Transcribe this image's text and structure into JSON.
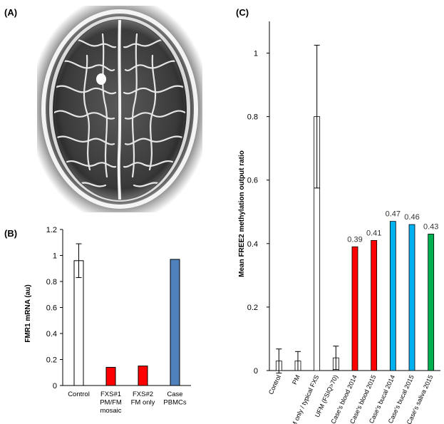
{
  "panels": {
    "a_label": "(A)",
    "b_label": "(B)",
    "c_label": "(C)"
  },
  "colors": {
    "white_bar": "#ffffff",
    "red_bar": "#ff0000",
    "blue_bar_b": "#4f81bd",
    "blue_bar_c": "#00b0f0",
    "green_bar": "#00b050"
  },
  "chart_data": [
    {
      "type": "bar",
      "panel": "B",
      "ylabel": "FMR1 mRNA (au)",
      "ylim": [
        0,
        1.2
      ],
      "yticks": [
        0,
        0.2,
        0.4,
        0.6,
        0.8,
        1,
        1.2
      ],
      "ytick_labels": [
        "0",
        "0.2",
        "0.4",
        "0.6",
        "0.8",
        "1",
        "1.2"
      ],
      "categories": [
        [
          "Control"
        ],
        [
          "FXS#1",
          "PM/FM",
          "mosaic"
        ],
        [
          "FXS#2",
          "FM only"
        ],
        [
          "Case",
          "PBMCs"
        ]
      ],
      "values": [
        0.96,
        0.14,
        0.15,
        0.97
      ],
      "errors": [
        0.13,
        null,
        null,
        null
      ],
      "bar_colors": [
        "#ffffff",
        "#ff0000",
        "#ff0000",
        "#4f81bd"
      ]
    },
    {
      "type": "bar",
      "panel": "C",
      "ylabel": "Mean FREE2 methylation output ratio",
      "ylim": [
        0,
        1.1
      ],
      "yticks": [
        0,
        0.2,
        0.4,
        0.6,
        0.8,
        1
      ],
      "ytick_labels": [
        "0",
        "0.2",
        "0.4",
        "0.6",
        "0.8",
        "1"
      ],
      "categories": [
        "Control",
        "PM",
        "FM only / typical FXS",
        "UFM (FSIQ>70)",
        "Case's blood 2014",
        "Case's blood 2015",
        "Case's bucal 2014",
        "Case's bucal 2015",
        "Case's saliva 2015"
      ],
      "values": [
        0.03,
        0.03,
        0.8,
        0.04,
        0.39,
        0.41,
        0.47,
        0.46,
        0.43
      ],
      "errors": [
        0.038,
        0.03,
        0.225,
        0.037,
        null,
        null,
        null,
        null,
        null
      ],
      "data_labels": [
        "",
        "",
        "",
        "",
        "0.39",
        "0.41",
        "0.47",
        "0.46",
        "0.43"
      ],
      "bar_colors": [
        "#ffffff",
        "#ffffff",
        "#ffffff",
        "#ffffff",
        "#ff0000",
        "#ff0000",
        "#00b0f0",
        "#00b0f0",
        "#00b050"
      ]
    }
  ]
}
